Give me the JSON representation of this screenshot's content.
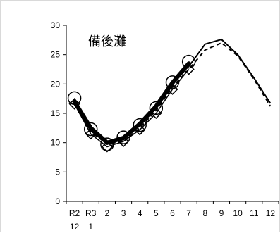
{
  "chart_data": {
    "type": "line",
    "title": "備後灘",
    "xlabel": "",
    "ylabel": "",
    "x_tick_labels": [
      [
        "R2",
        "12"
      ],
      [
        "R3",
        "1"
      ],
      [
        "2",
        ""
      ],
      [
        "3",
        ""
      ],
      [
        "4",
        ""
      ],
      [
        "5",
        ""
      ],
      [
        "6",
        ""
      ],
      [
        "7",
        ""
      ],
      [
        "8",
        ""
      ],
      [
        "9",
        ""
      ],
      [
        "10",
        ""
      ],
      [
        "11",
        ""
      ],
      [
        "12",
        ""
      ]
    ],
    "ylim": [
      0,
      30
    ],
    "y_ticks": [
      0,
      5,
      10,
      15,
      20,
      25,
      30
    ],
    "grid": false,
    "series": [
      {
        "style": "solid-thin",
        "values": [
          17.0,
          12.0,
          10.0,
          10.5,
          13.0,
          16.0,
          20.5,
          23.0,
          26.8,
          27.6,
          25.0,
          21.0,
          16.7
        ]
      },
      {
        "style": "dashed-thin",
        "values": [
          16.5,
          11.8,
          9.8,
          10.2,
          12.5,
          15.5,
          19.5,
          22.5,
          25.8,
          27.0,
          24.8,
          20.8,
          16.2
        ]
      },
      {
        "style": "solid-thick",
        "values": [
          17.0,
          12.5,
          10.0,
          10.8,
          13.2,
          16.2,
          20.2,
          23.5
        ]
      },
      {
        "style": "circle-markers",
        "values": [
          17.6,
          12.3,
          9.7,
          10.9,
          13.0,
          15.9,
          20.3,
          23.8
        ]
      },
      {
        "style": "diamond-markers",
        "values": [
          16.6,
          11.5,
          9.3,
          10.2,
          12.2,
          15.0,
          19.1,
          22.5
        ]
      }
    ]
  }
}
